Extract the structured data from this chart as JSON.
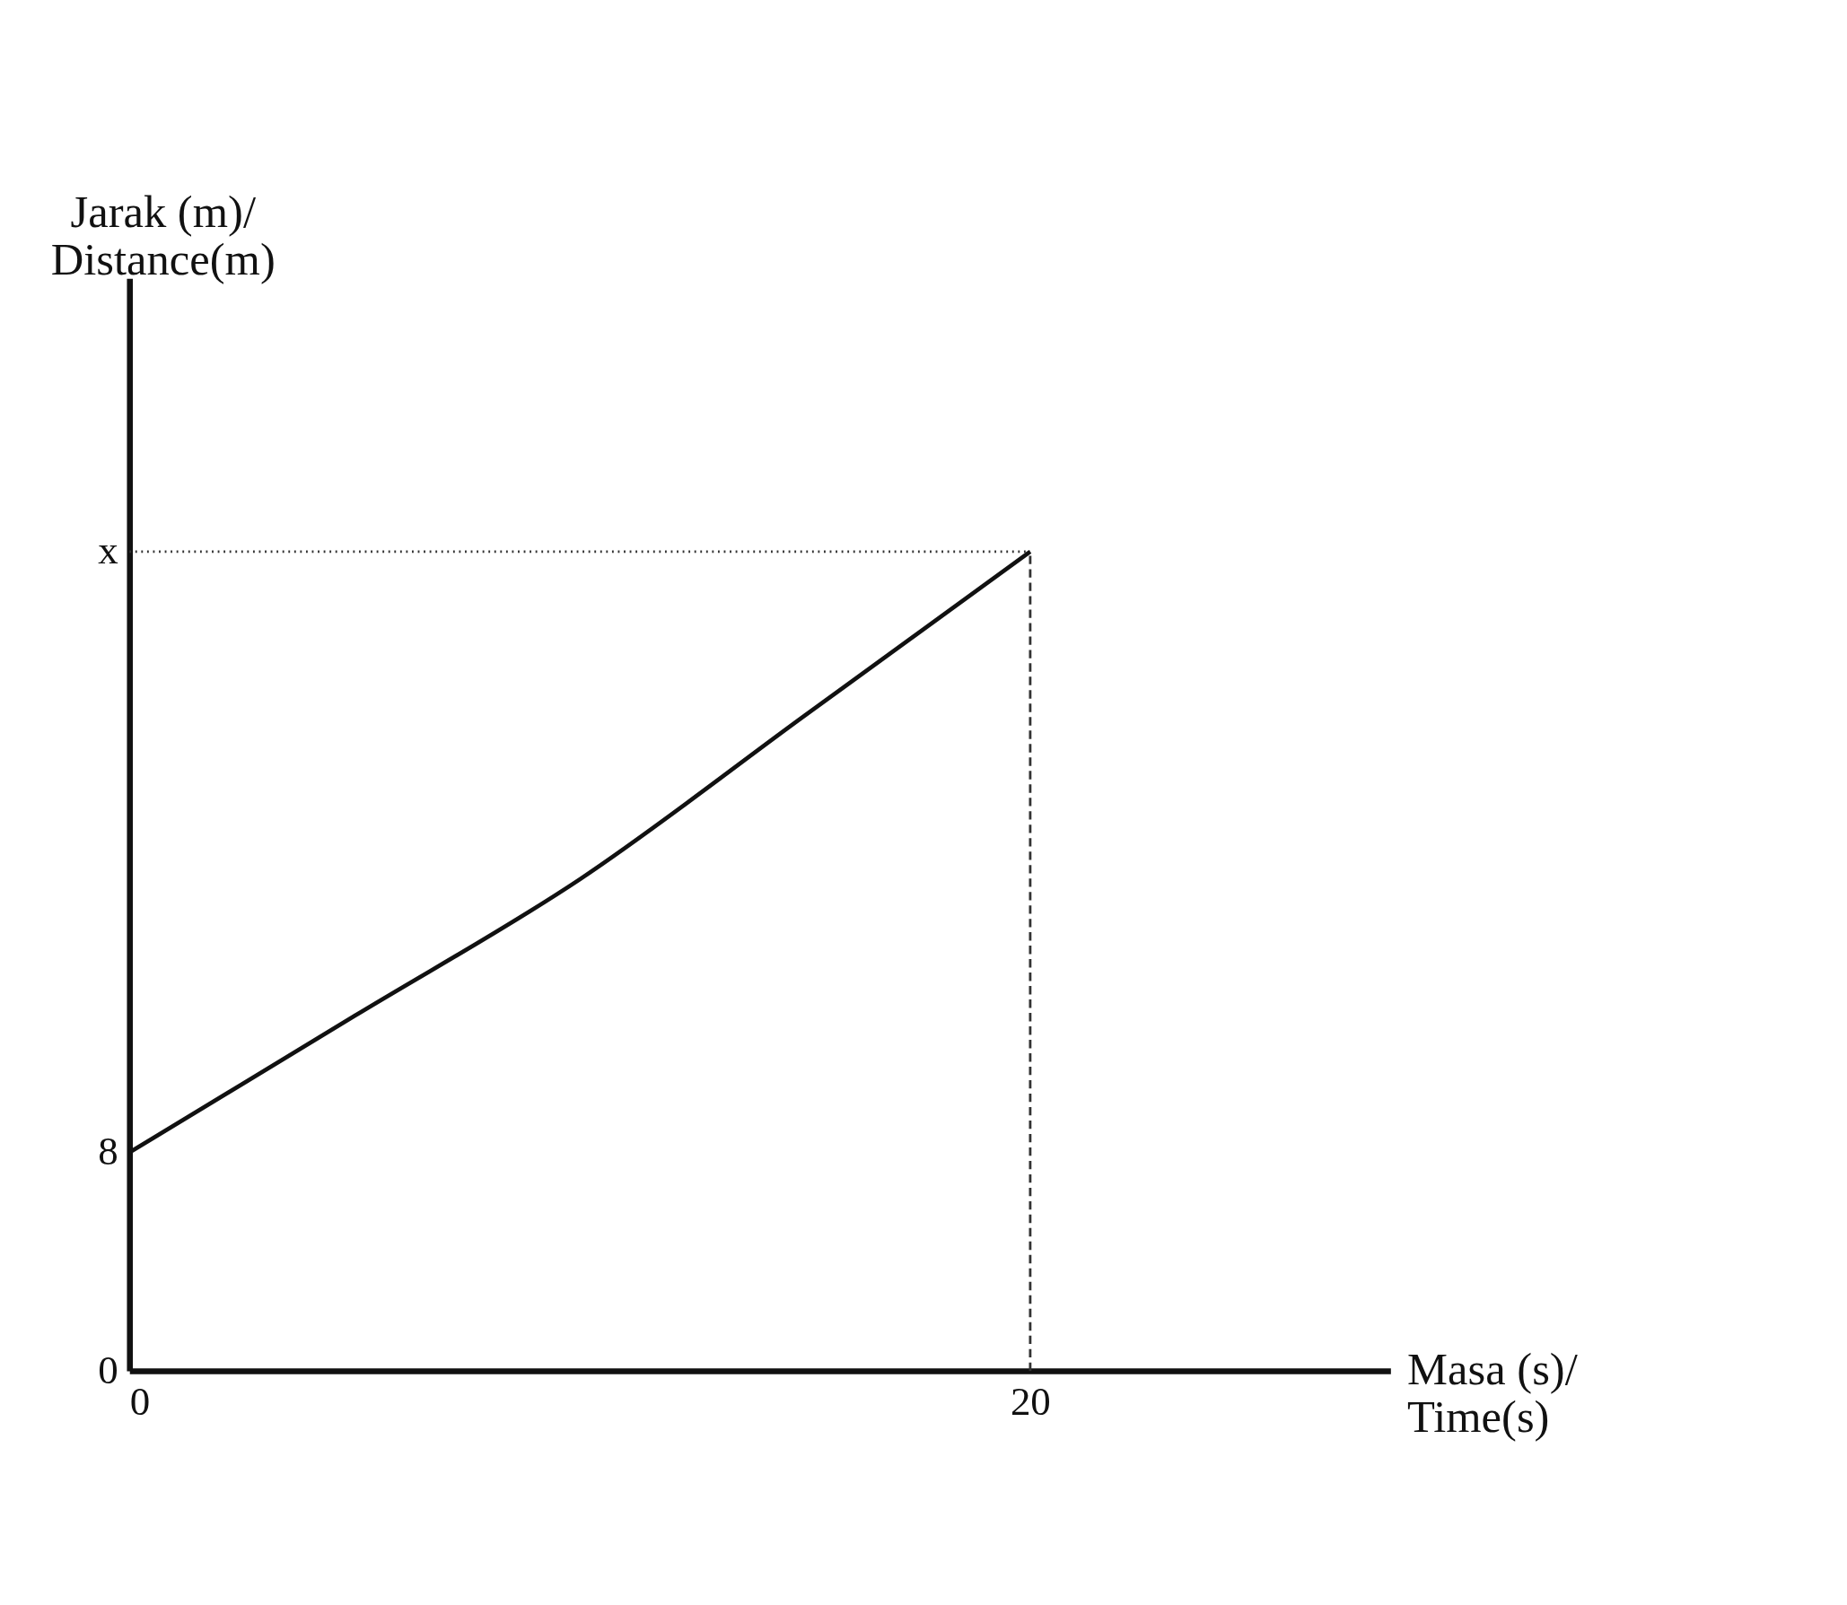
{
  "chart_data": {
    "type": "line",
    "xlabel": "Masa (s)/\nTime(s)",
    "ylabel": "Jarak (m)/\nDistance(m)",
    "x": [
      0,
      5,
      10,
      15,
      20
    ],
    "series": [
      {
        "color": "#111111",
        "values": [
          8,
          13,
          18,
          24,
          30
        ]
      }
    ],
    "xlim": [
      0,
      28
    ],
    "ylim": [
      0,
      40
    ],
    "xticks": [
      0,
      20
    ],
    "yticks": [
      0,
      8,
      {
        "value": 30,
        "label": "x"
      }
    ],
    "ref_lines": [
      {
        "axis": "y",
        "value": 30,
        "line_style": "dotted",
        "color": "#333333"
      },
      {
        "axis": "x",
        "value": 20,
        "line_style": "dashed",
        "color": "#333333"
      }
    ],
    "grid": false,
    "marker": "none",
    "line_style": "solid"
  }
}
